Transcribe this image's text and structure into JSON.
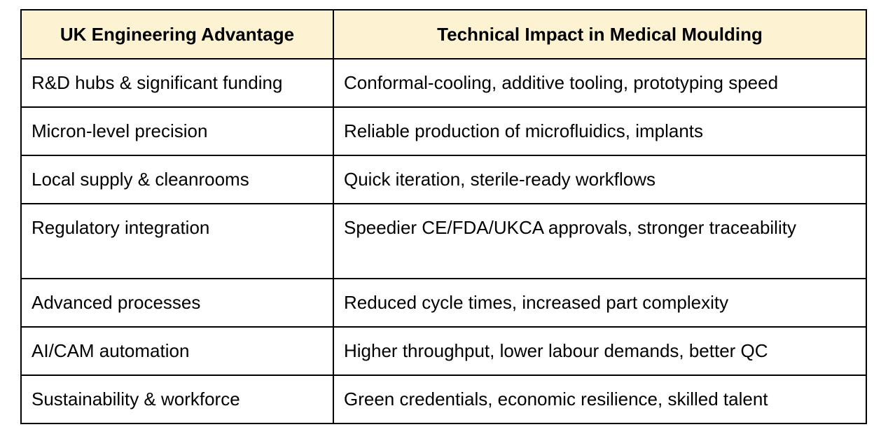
{
  "colors": {
    "header_background": "#fdf3d3",
    "border": "#000000",
    "text": "#000000",
    "body_background": "#ffffff"
  },
  "table": {
    "headers": [
      "UK Engineering Advantage",
      "Technical Impact in Medical Moulding"
    ],
    "rows": [
      [
        "R&D hubs & significant funding",
        "Conformal-cooling, additive tooling, prototyping speed"
      ],
      [
        "Micron-level precision",
        "Reliable production of microfluidics, implants"
      ],
      [
        "Local supply & cleanrooms",
        "Quick iteration, sterile-ready workflows"
      ],
      [
        "Regulatory integration",
        "Speedier CE/FDA/UKCA approvals, stronger traceability"
      ],
      [
        "Advanced processes",
        "Reduced cycle times, increased part complexity"
      ],
      [
        "AI/CAM automation",
        "Higher throughput, lower labour demands, better QC"
      ],
      [
        "Sustainability & workforce",
        "Green credentials, economic resilience, skilled talent"
      ]
    ]
  }
}
